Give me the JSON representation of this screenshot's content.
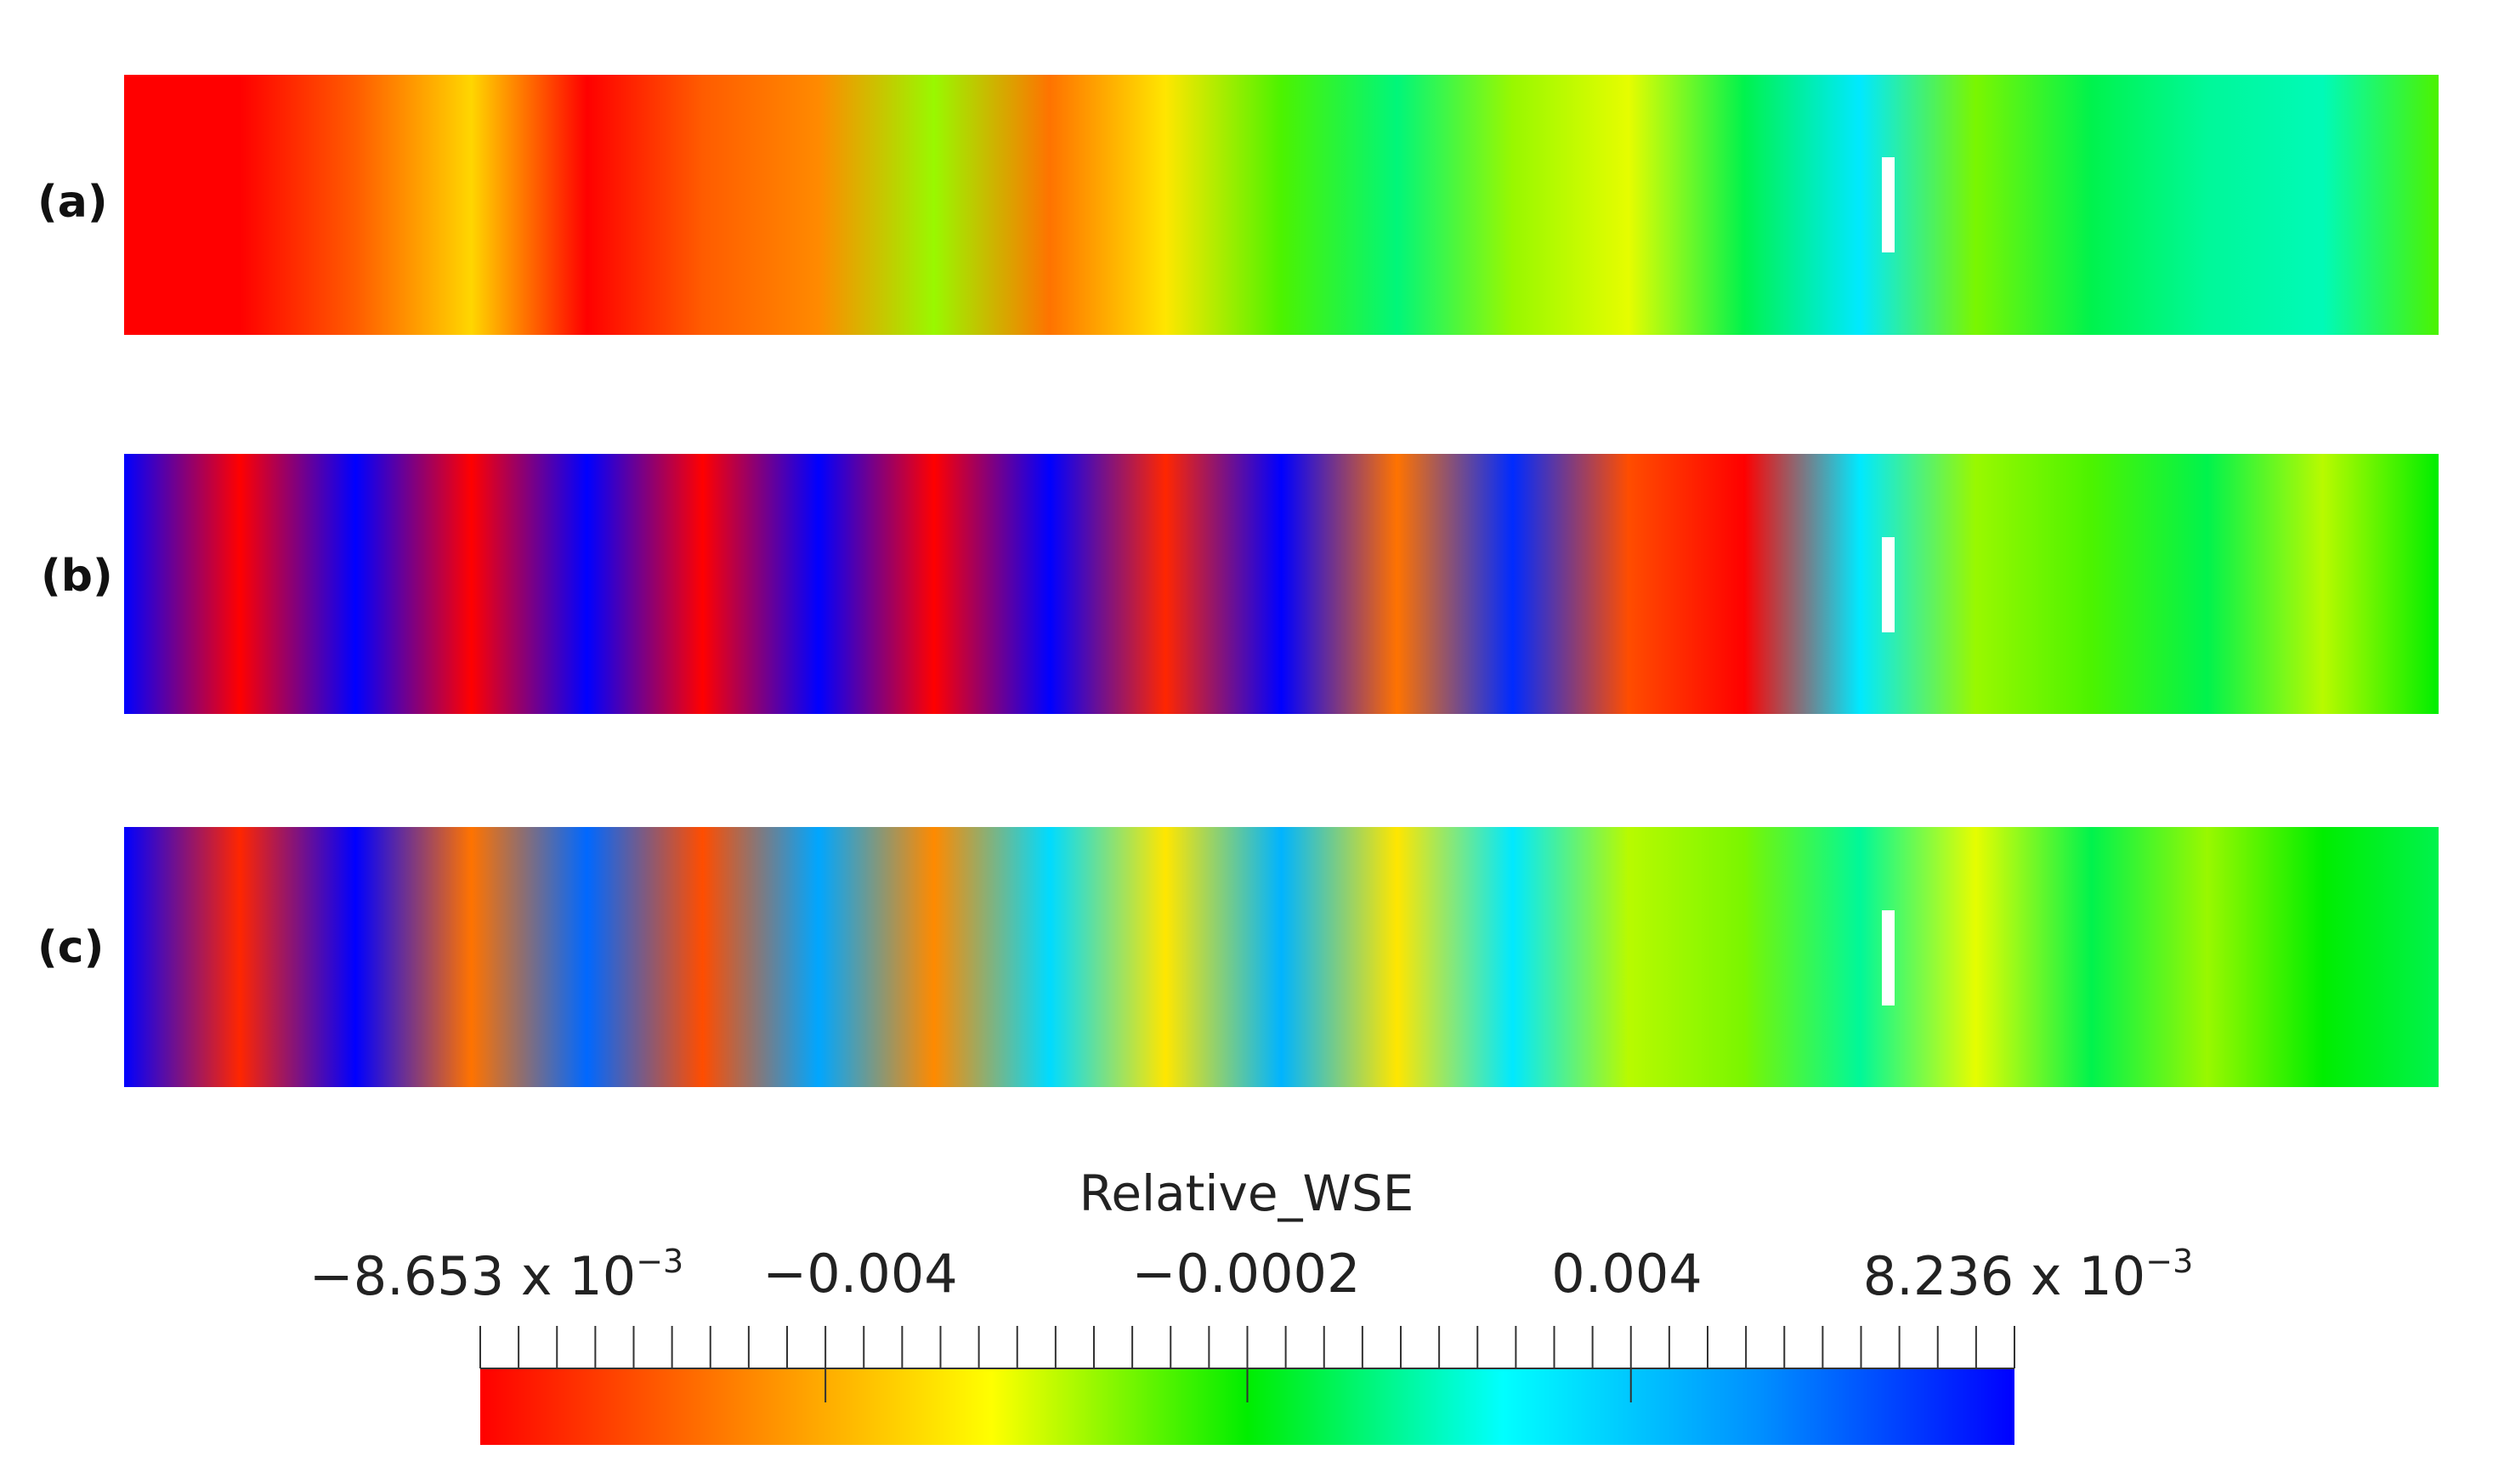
{
  "panels": [
    {
      "label": "(a)",
      "data": [
        0.0,
        0.0,
        0.12,
        0.28,
        0.0,
        0.12,
        0.18,
        0.4,
        0.15,
        0.3,
        0.45,
        0.58,
        0.4,
        0.35,
        0.55,
        0.7,
        0.42,
        0.55,
        0.6,
        0.62,
        0.45
      ]
    },
    {
      "label": "(b)",
      "data": [
        1.0,
        0.0,
        1.0,
        0.0,
        1.0,
        0.0,
        1.0,
        0.0,
        1.0,
        0.05,
        1.0,
        0.15,
        0.95,
        0.1,
        0.0,
        0.7,
        0.4,
        0.45,
        0.55,
        0.38,
        0.5
      ]
    },
    {
      "label": "(c)",
      "data": [
        1.0,
        0.05,
        1.0,
        0.15,
        0.88,
        0.1,
        0.8,
        0.18,
        0.72,
        0.3,
        0.78,
        0.3,
        0.7,
        0.38,
        0.42,
        0.6,
        0.35,
        0.55,
        0.4,
        0.5,
        0.55
      ]
    }
  ],
  "colorbar": {
    "title": "Relative_WSE",
    "min_value": "−8.653 x 10",
    "min_exp": "−3",
    "tick2": "−0.004",
    "tick3": "−0.0002",
    "tick4": "0.004",
    "max_value": "8.236 x 10",
    "max_exp": "−3",
    "colors": [
      "#ff0000",
      "#ff8000",
      "#ffff00",
      "#00ee00",
      "#00ffff",
      "#0090ff",
      "#0000ff"
    ]
  }
}
